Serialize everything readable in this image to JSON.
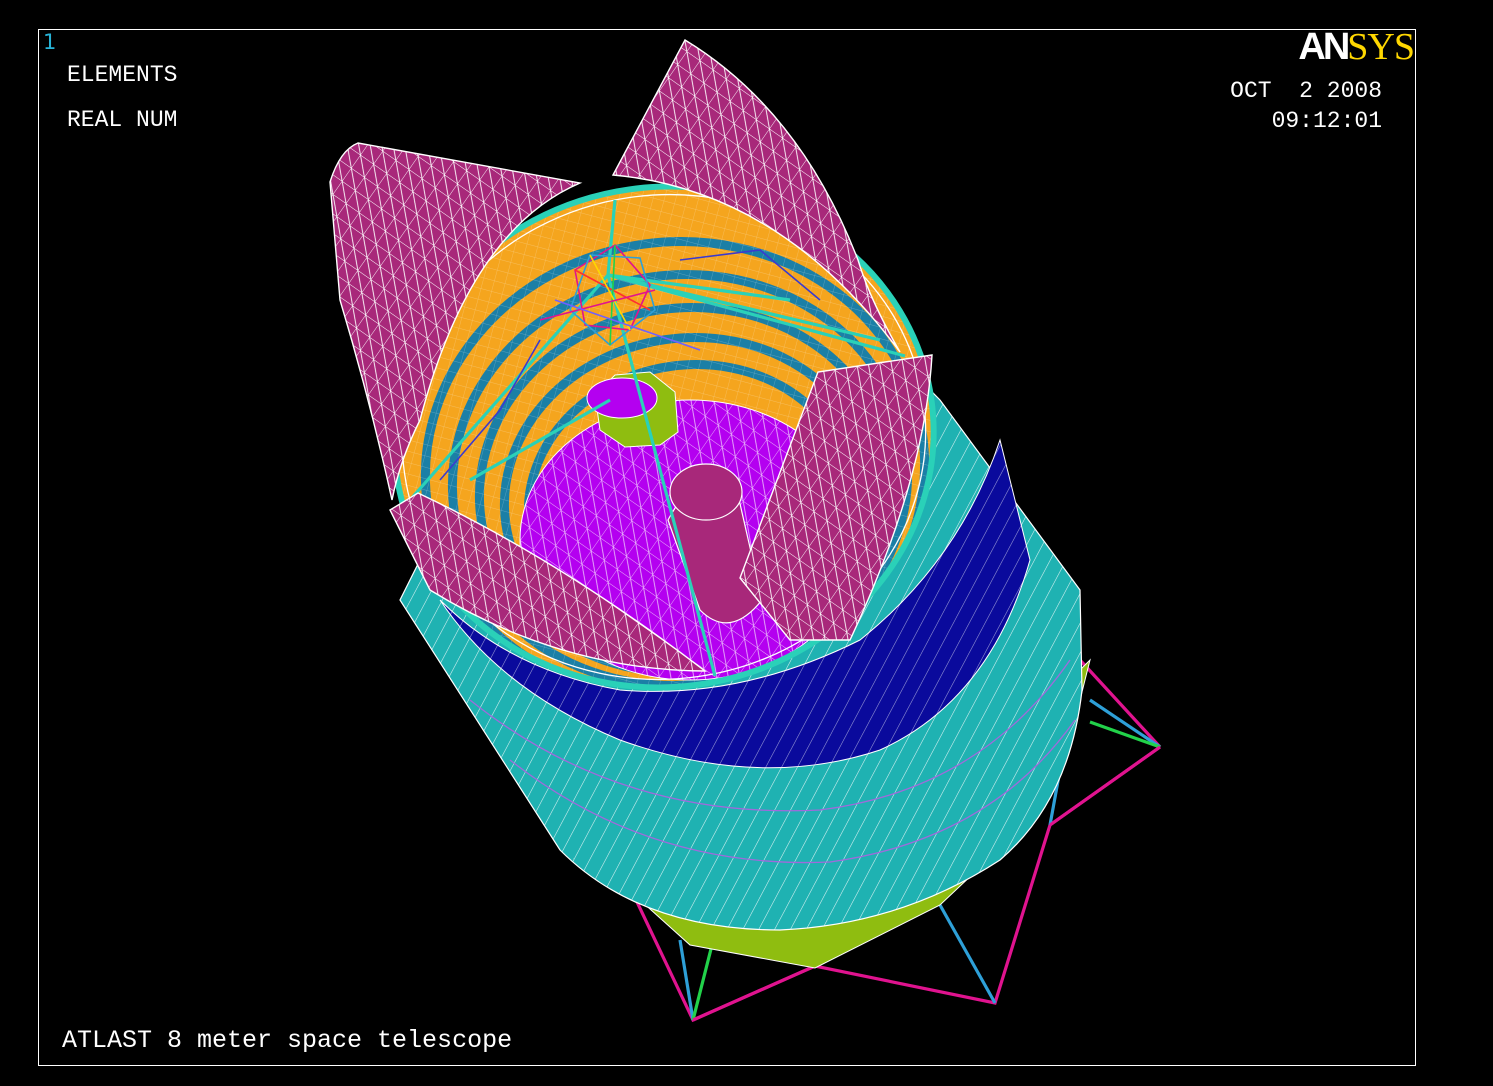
{
  "window_number": "1",
  "legend": {
    "line1": "ELEMENTS",
    "line2": "REAL NUM"
  },
  "logo": {
    "part1": "AN",
    "part2": "SYS"
  },
  "date": "OCT  2 2008",
  "time": "09:12:01",
  "caption": "ATLAST 8 meter space telescope",
  "colors": {
    "magenta_shell": "#a8287a",
    "aperture_orange": "#f5a51e",
    "ring_blue": "#1b7fa6",
    "mirror_purple": "#b400f0",
    "barrel_navy": "#0a0a9c",
    "barrel_cyan": "#1fb2b2",
    "spacecraft_green": "#8fbd10",
    "strut_pink": "#e0138f",
    "strut_teal": "#2ea0d8",
    "mesh_white": "#ffffff",
    "logo_yellow": "#ffd700"
  }
}
